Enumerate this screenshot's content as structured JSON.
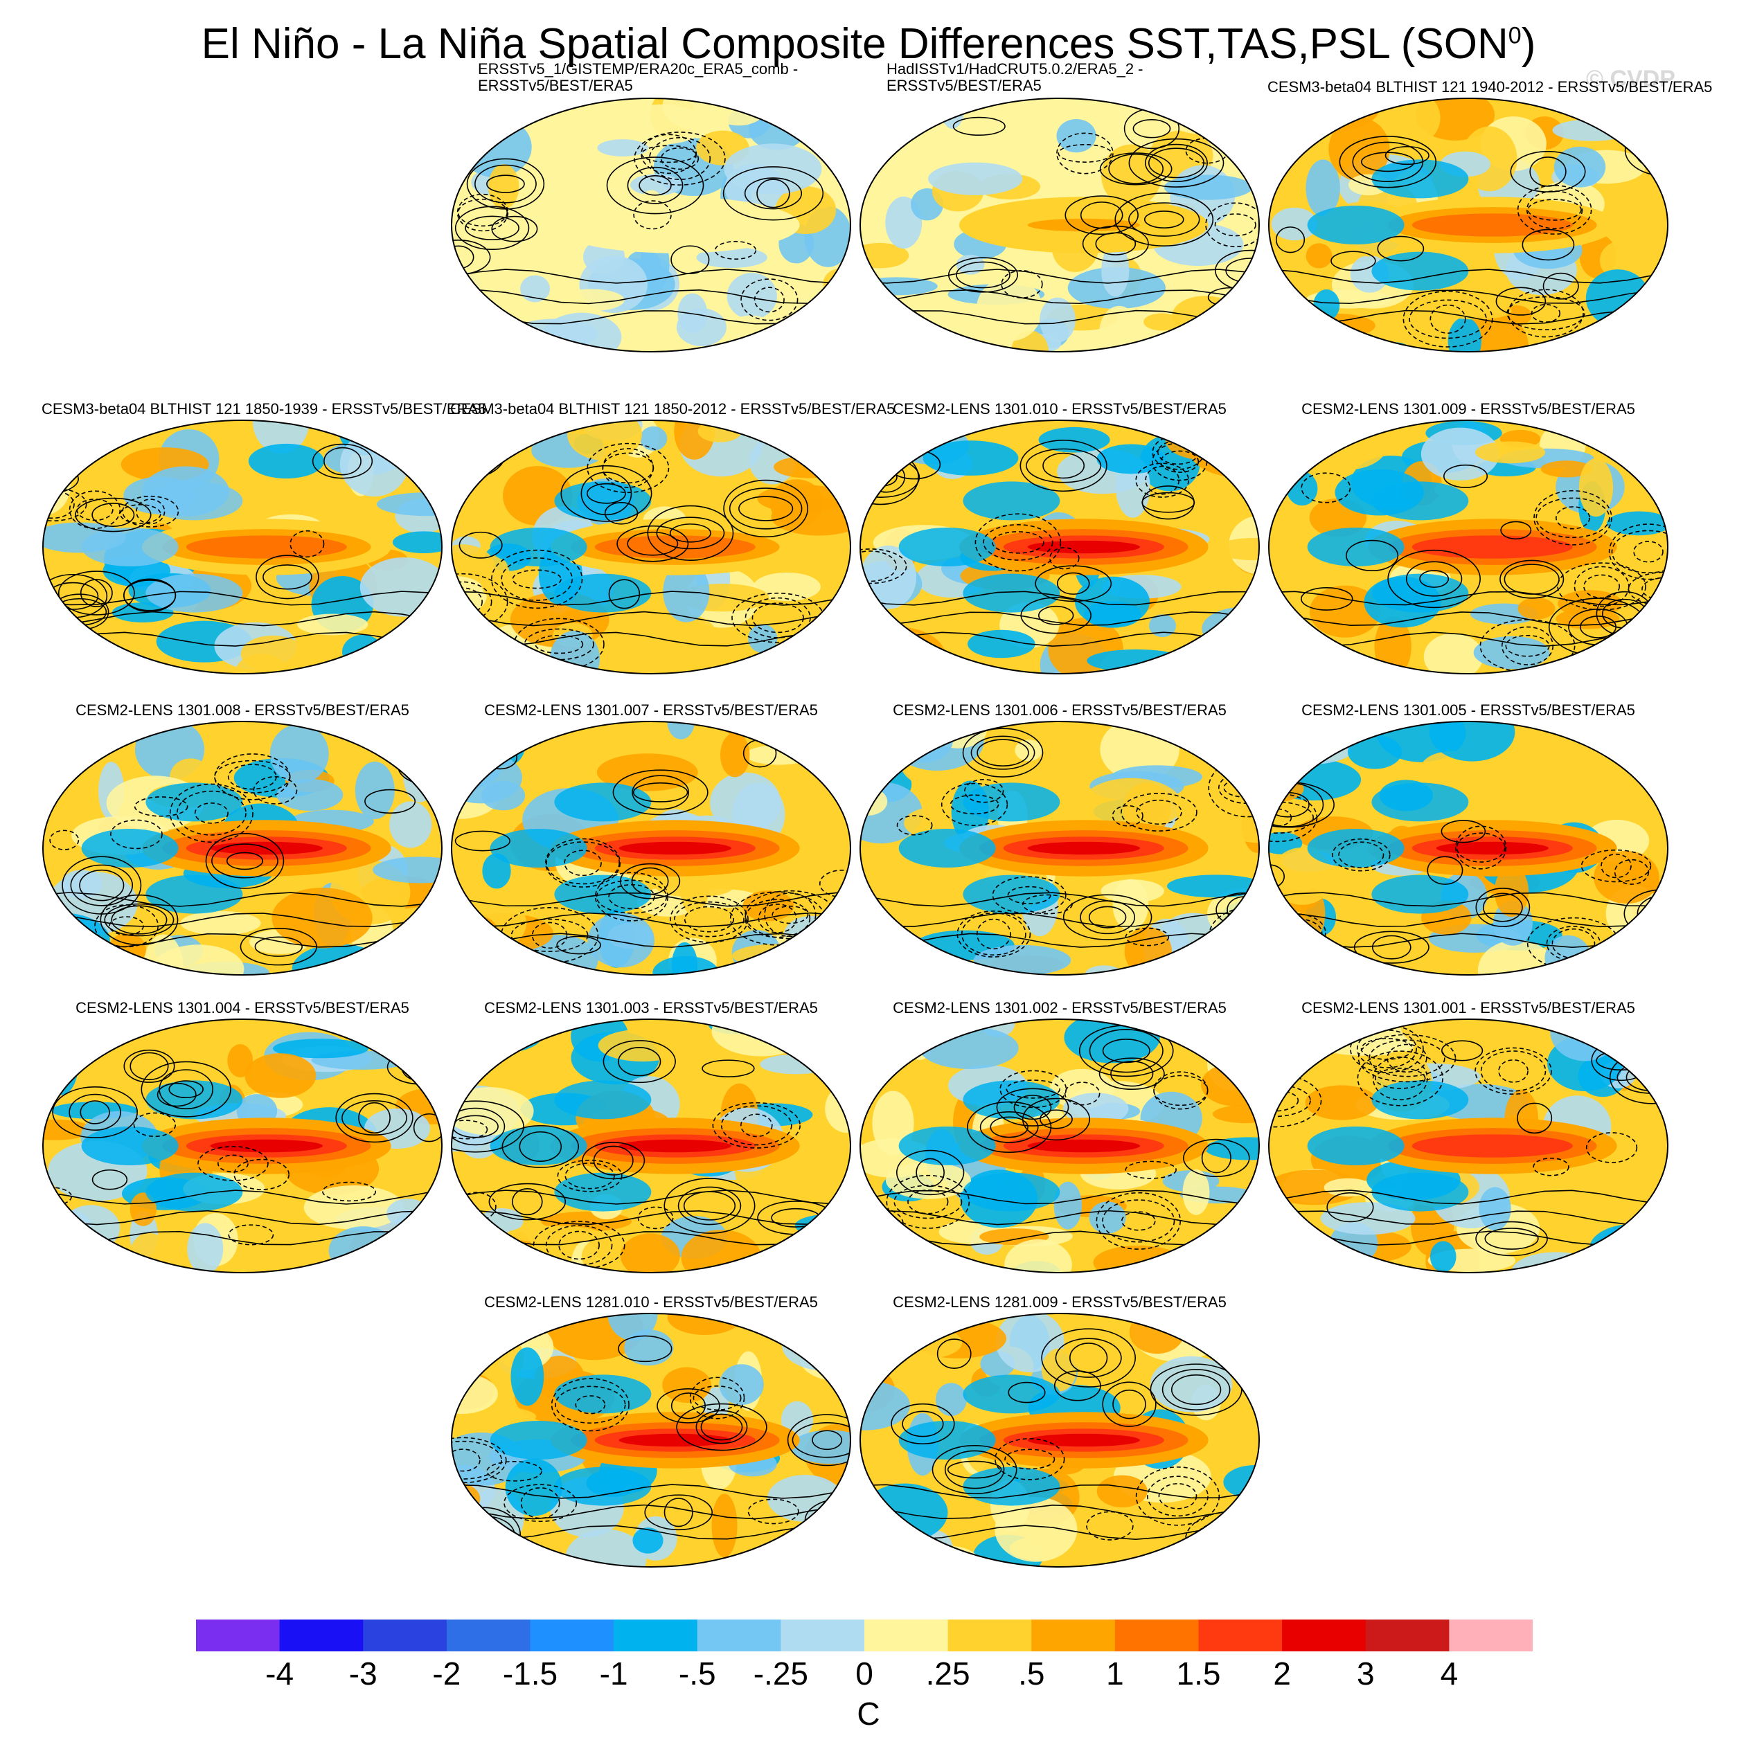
{
  "title_main": "El Niño - La Niña Spatial Composite Differences SST,TAS,PSL (SON",
  "title_sup": "0",
  "title_close": ")",
  "watermark": "© CVDP",
  "chart_data": {
    "type": "heatmap",
    "description_field": "SST/TAS composite difference (shaded) with PSL contours (solid positive, dashed negative)",
    "panels": [
      {
        "title_line1": "ERSSTv5_1/GISTEMP/ERA20c_ERA5_comb -",
        "title_line2": "ERSSTv5/BEST/ERA5",
        "enso": 0.1,
        "seed": 3
      },
      {
        "title_line1": "HadISSTv1/HadCRUT5.0.2/ERA5_2 -",
        "title_line2": "ERSSTv5/BEST/ERA5",
        "enso": 0.25,
        "seed": 7
      },
      {
        "title_line1": "CESM3-beta04 BLTHIST 121 1940-2012 - ERSSTv5/BEST/ERA5",
        "title_line2": "",
        "enso": 0.65,
        "seed": 11
      },
      {
        "title_line1": "CESM3-beta04 BLTHIST 121 1850-1939 - ERSSTv5/BEST/ERA5",
        "title_line2": "",
        "enso": 0.6,
        "seed": 13
      },
      {
        "title_line1": "CESM3-beta04 BLTHIST 121 1850-2012 - ERSSTv5/BEST/ERA5",
        "title_line2": "",
        "enso": 0.65,
        "seed": 17
      },
      {
        "title_line1": "CESM2-LENS 1301.010 - ERSSTv5/BEST/ERA5",
        "title_line2": "",
        "enso": 1.0,
        "seed": 19
      },
      {
        "title_line1": "CESM2-LENS 1301.009 - ERSSTv5/BEST/ERA5",
        "title_line2": "",
        "enso": 0.85,
        "seed": 23
      },
      {
        "title_line1": "CESM2-LENS 1301.008 - ERSSTv5/BEST/ERA5",
        "title_line2": "",
        "enso": 0.95,
        "seed": 29
      },
      {
        "title_line1": "CESM2-LENS 1301.007 - ERSSTv5/BEST/ERA5",
        "title_line2": "",
        "enso": 1.0,
        "seed": 31
      },
      {
        "title_line1": "CESM2-LENS 1301.006 - ERSSTv5/BEST/ERA5",
        "title_line2": "",
        "enso": 0.9,
        "seed": 37
      },
      {
        "title_line1": "CESM2-LENS 1301.005 - ERSSTv5/BEST/ERA5",
        "title_line2": "",
        "enso": 0.95,
        "seed": 41
      },
      {
        "title_line1": "CESM2-LENS 1301.004 - ERSSTv5/BEST/ERA5",
        "title_line2": "",
        "enso": 0.9,
        "seed": 43
      },
      {
        "title_line1": "CESM2-LENS 1301.003 - ERSSTv5/BEST/ERA5",
        "title_line2": "",
        "enso": 1.0,
        "seed": 47
      },
      {
        "title_line1": "CESM2-LENS 1301.002 - ERSSTv5/BEST/ERA5",
        "title_line2": "",
        "enso": 0.9,
        "seed": 53
      },
      {
        "title_line1": "CESM2-LENS 1301.001 - ERSSTv5/BEST/ERA5",
        "title_line2": "",
        "enso": 0.85,
        "seed": 59
      },
      {
        "title_line1": "CESM2-LENS 1281.010 - ERSSTv5/BEST/ERA5",
        "title_line2": "",
        "enso": 0.95,
        "seed": 61
      },
      {
        "title_line1": "CESM2-LENS 1281.009 - ERSSTv5/BEST/ERA5",
        "title_line2": "",
        "enso": 0.9,
        "seed": 67
      }
    ],
    "colorbar": {
      "label": "C",
      "ticks": [
        "-4",
        "-3",
        "-2",
        "-1.5",
        "-1",
        "-.5",
        "-.25",
        "0",
        ".25",
        ".5",
        "1",
        "1.5",
        "2",
        "3",
        "4"
      ],
      "colors": [
        "#7a2ef0",
        "#1a10f5",
        "#2942e0",
        "#2e6ee6",
        "#1e90ff",
        "#00b2ee",
        "#73c7f2",
        "#b0dcf2",
        "#fff59d",
        "#ffd22e",
        "#ffa500",
        "#ff7300",
        "#ff3a10",
        "#e80000",
        "#cc1a1a",
        "#ffb0b8"
      ]
    }
  }
}
